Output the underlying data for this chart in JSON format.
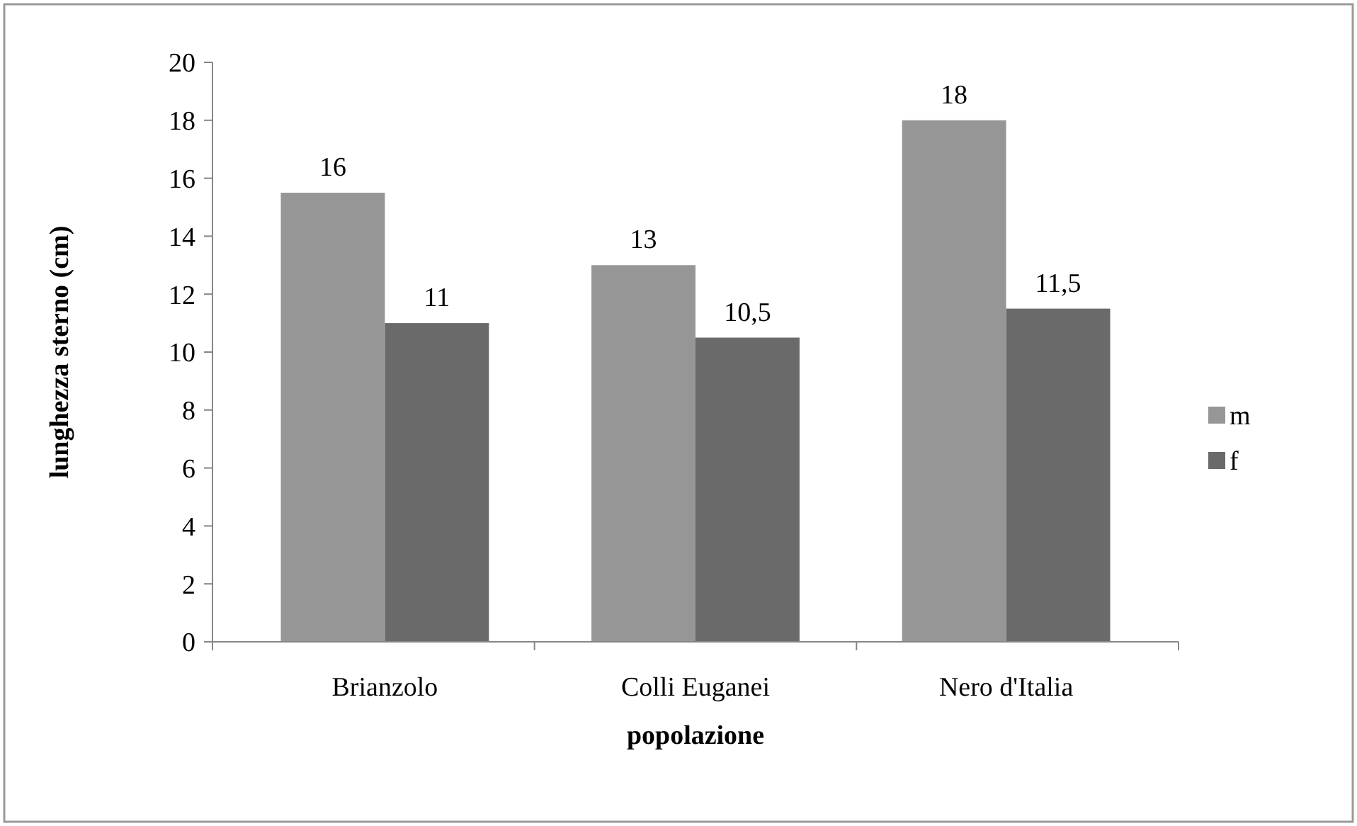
{
  "chart_data": {
    "type": "bar",
    "xlabel": "popolazione",
    "ylabel": "lunghezza sterno (cm)",
    "categories": [
      "Brianzolo",
      "Colli Euganei",
      "Nero d'Italia"
    ],
    "series": [
      {
        "name": "m",
        "color": "#969696",
        "values": [
          15.5,
          13,
          18
        ],
        "value_labels": [
          "16",
          "13",
          "18"
        ]
      },
      {
        "name": "f",
        "color": "#6a6a6a",
        "values": [
          11,
          10.5,
          11.5
        ],
        "value_labels": [
          "11",
          "10,5",
          "11,5"
        ]
      }
    ],
    "ylim": [
      0,
      20
    ],
    "yticks": [
      0,
      2,
      4,
      6,
      8,
      10,
      12,
      14,
      16,
      18,
      20
    ],
    "grid": false,
    "legend": "right"
  }
}
